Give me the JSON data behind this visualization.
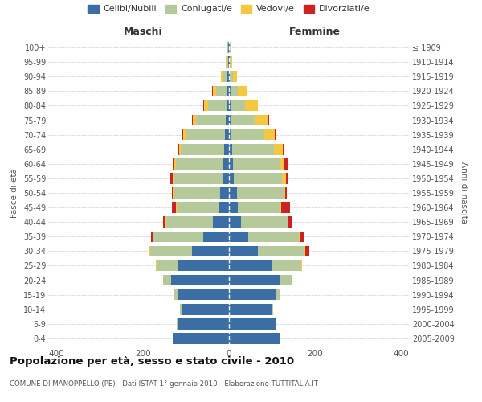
{
  "age_groups": [
    "0-4",
    "5-9",
    "10-14",
    "15-19",
    "20-24",
    "25-29",
    "30-34",
    "35-39",
    "40-44",
    "45-49",
    "50-54",
    "55-59",
    "60-64",
    "65-69",
    "70-74",
    "75-79",
    "80-84",
    "85-89",
    "90-94",
    "95-99",
    "100+"
  ],
  "birth_years": [
    "2005-2009",
    "2000-2004",
    "1995-1999",
    "1990-1994",
    "1985-1989",
    "1980-1984",
    "1975-1979",
    "1970-1974",
    "1965-1969",
    "1960-1964",
    "1955-1959",
    "1950-1954",
    "1945-1949",
    "1940-1944",
    "1935-1939",
    "1930-1934",
    "1925-1929",
    "1920-1924",
    "1915-1919",
    "1910-1914",
    "≤ 1909"
  ],
  "male_celibi": [
    130,
    120,
    110,
    120,
    135,
    120,
    85,
    60,
    38,
    22,
    20,
    14,
    14,
    12,
    10,
    8,
    6,
    5,
    3,
    2,
    2
  ],
  "male_coniugati": [
    1,
    2,
    4,
    8,
    18,
    48,
    98,
    115,
    108,
    100,
    108,
    115,
    110,
    100,
    90,
    68,
    42,
    25,
    12,
    4,
    2
  ],
  "male_vedovi": [
    0,
    0,
    0,
    0,
    0,
    1,
    1,
    2,
    2,
    2,
    2,
    2,
    3,
    4,
    6,
    8,
    10,
    8,
    3,
    1,
    0
  ],
  "male_divorziati": [
    0,
    0,
    0,
    0,
    0,
    1,
    2,
    5,
    5,
    8,
    3,
    5,
    3,
    4,
    2,
    2,
    1,
    1,
    0,
    0,
    0
  ],
  "female_celibi": [
    118,
    108,
    98,
    108,
    118,
    100,
    68,
    45,
    28,
    20,
    18,
    12,
    10,
    7,
    5,
    4,
    4,
    3,
    2,
    1,
    1
  ],
  "female_coniugati": [
    1,
    2,
    4,
    12,
    28,
    68,
    108,
    118,
    108,
    98,
    108,
    112,
    108,
    98,
    78,
    58,
    33,
    18,
    8,
    3,
    2
  ],
  "female_vedovi": [
    0,
    0,
    0,
    0,
    1,
    1,
    1,
    2,
    2,
    3,
    5,
    8,
    10,
    20,
    24,
    30,
    30,
    20,
    8,
    3,
    1
  ],
  "female_divorziati": [
    0,
    0,
    0,
    0,
    1,
    1,
    10,
    10,
    10,
    20,
    4,
    4,
    8,
    2,
    2,
    1,
    1,
    1,
    0,
    0,
    0
  ],
  "color_celibi": "#3b6ea5",
  "color_coniugati": "#b5c99a",
  "color_vedovi": "#f5c842",
  "color_divorziati": "#cc2222",
  "title": "Popolazione per età, sesso e stato civile - 2010",
  "subtitle": "COMUNE DI MANOPPELLO (PE) - Dati ISTAT 1° gennaio 2010 - Elaborazione TUTTITALIA.IT",
  "xlabel_left": "Maschi",
  "xlabel_right": "Femmine",
  "ylabel_left": "Fasce di età",
  "ylabel_right": "Anni di nascita",
  "xlim": 420,
  "bg_color": "#ffffff",
  "grid_color": "#cccccc"
}
